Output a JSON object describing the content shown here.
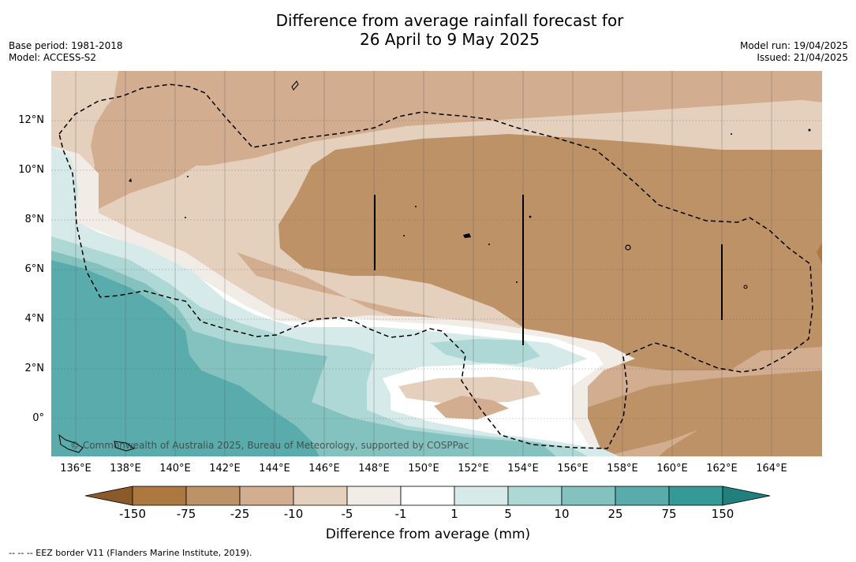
{
  "header": {
    "title_line1": "Difference from average rainfall forecast for",
    "title_line2": "26 April to 9 May 2025",
    "base_period": "Base period: 1981-2018",
    "model": "Model: ACCESS-S2",
    "model_run": "Model run: 19/04/2025",
    "issued": "Issued: 21/04/2025"
  },
  "map": {
    "copyright": "© Commonwealth of Australia 2025, Bureau of Meteorology, supported by COSPPac",
    "lat_labels": [
      "12°N",
      "10°N",
      "8°N",
      "6°N",
      "4°N",
      "2°N",
      "0°"
    ],
    "lon_labels": [
      "136°E",
      "138°E",
      "140°E",
      "142°E",
      "144°E",
      "146°E",
      "148°E",
      "150°E",
      "152°E",
      "154°E",
      "156°E",
      "158°E",
      "160°E",
      "162°E",
      "164°E"
    ]
  },
  "colorbar": {
    "title": "Difference from average (mm)",
    "tick_labels": [
      "-150",
      "-75",
      "-25",
      "-10",
      "-5",
      "-1",
      "1",
      "5",
      "10",
      "25",
      "75",
      "150"
    ],
    "colors": [
      "#8b5a2b",
      "#ad7840",
      "#be9267",
      "#d2ad8f",
      "#e5d0be",
      "#f2ece6",
      "#ffffff",
      "#d6ebe9",
      "#aed8d6",
      "#84c2c0",
      "#5aacac",
      "#359997",
      "#217f7d"
    ]
  },
  "footer": {
    "footnote": "--  --  -- EEZ border V11 (Flanders Marine Institute, 2019)."
  }
}
